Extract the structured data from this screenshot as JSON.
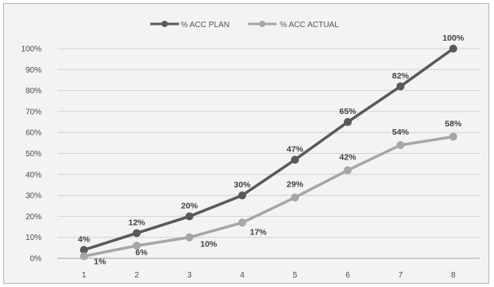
{
  "chart_data": {
    "type": "line",
    "categories": [
      "1",
      "2",
      "3",
      "4",
      "5",
      "6",
      "7",
      "8"
    ],
    "series": [
      {
        "name": "% ACC PLAN",
        "color": "#595959",
        "values": [
          4,
          12,
          20,
          30,
          47,
          65,
          82,
          100
        ],
        "labels": [
          "4%",
          "12%",
          "20%",
          "30%",
          "47%",
          "65%",
          "82%",
          "100%"
        ]
      },
      {
        "name": "% ACC ACTUAL",
        "color": "#a6a6a6",
        "values": [
          1,
          6,
          10,
          17,
          29,
          42,
          54,
          58
        ],
        "labels": [
          "1%",
          "6%",
          "10%",
          "17%",
          "29%",
          "42%",
          "54%",
          "58%"
        ]
      }
    ],
    "y_ticks": [
      "0%",
      "10%",
      "20%",
      "30%",
      "40%",
      "50%",
      "60%",
      "70%",
      "80%",
      "90%",
      "100%"
    ],
    "ylim": [
      0,
      100
    ],
    "grid": true,
    "legend_position": "top-center"
  }
}
